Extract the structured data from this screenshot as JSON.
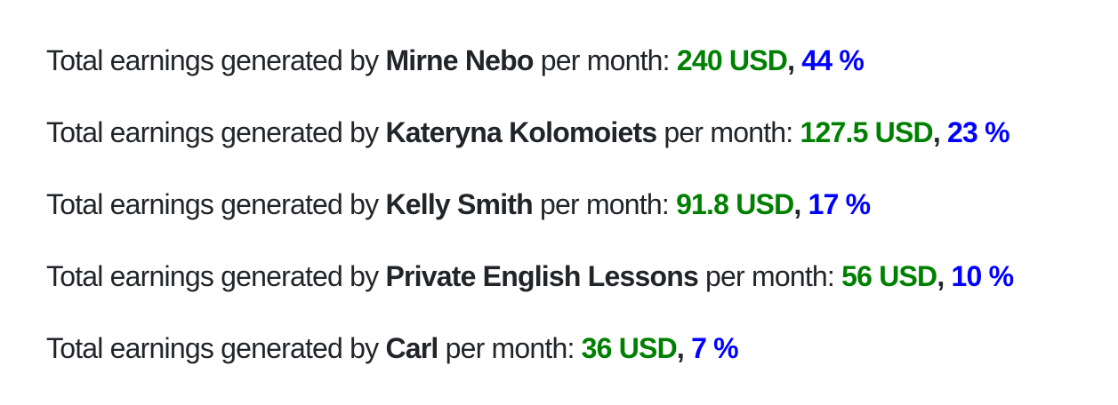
{
  "colors": {
    "text": "#212529",
    "amount": "#008000",
    "percent": "#0000ff"
  },
  "earnings": [
    {
      "prefix": "Total earnings generated by ",
      "name": "Mirne Nebo",
      "middle": " per month: ",
      "amount": "240 USD",
      "separator": ", ",
      "percent": "44 %"
    },
    {
      "prefix": "Total earnings generated by ",
      "name": "Kateryna Kolomoiets",
      "middle": " per month: ",
      "amount": "127.5 USD",
      "separator": ", ",
      "percent": "23 %"
    },
    {
      "prefix": "Total earnings generated by ",
      "name": "Kelly Smith",
      "middle": " per month: ",
      "amount": "91.8 USD",
      "separator": ", ",
      "percent": "17 %"
    },
    {
      "prefix": "Total earnings generated by ",
      "name": "Private English Lessons",
      "middle": " per month: ",
      "amount": "56 USD",
      "separator": ", ",
      "percent": "10 %"
    },
    {
      "prefix": "Total earnings generated by ",
      "name": "Carl",
      "middle": " per month: ",
      "amount": "36 USD",
      "separator": ", ",
      "percent": "7 %"
    }
  ]
}
